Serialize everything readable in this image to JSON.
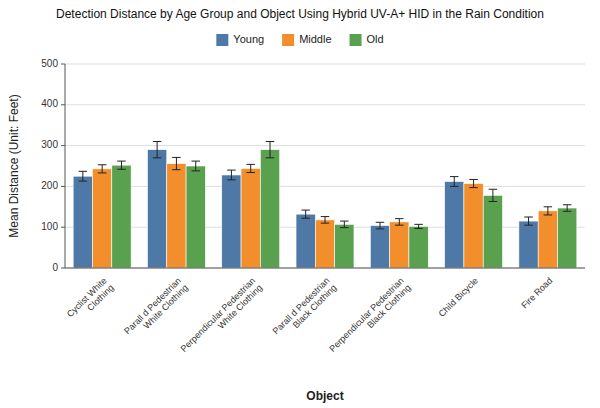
{
  "chart_data": {
    "type": "bar",
    "title": "Detection Distance by Age Group and Object Using Hybrid UV-A+ HID in the Rain Condition",
    "xlabel": "Object",
    "ylabel": "Mean Distance (Unit:  Feet)",
    "categories": [
      "Cyclist White\nClothing",
      "Parall d Pedestrian\nWhite Clothing",
      "Perpendicular Pedestrian\nWhite Clothing",
      "Parall d Pedestrian\nBlack Clothing",
      "Perpendicular Pedestrian\nBlack Clothing",
      "Child Bicycle",
      "Fire Road"
    ],
    "series": [
      {
        "name": "Young",
        "color": "#4e79a7",
        "values": [
          225,
          290,
          228,
          132,
          104,
          212,
          115
        ],
        "errors": [
          12,
          20,
          12,
          10,
          8,
          12,
          10
        ]
      },
      {
        "name": "Middle",
        "color": "#f28e2b",
        "values": [
          243,
          256,
          244,
          118,
          113,
          207,
          140
        ],
        "errors": [
          10,
          15,
          10,
          8,
          8,
          10,
          10
        ]
      },
      {
        "name": "Old",
        "color": "#59a14f",
        "values": [
          252,
          250,
          290,
          107,
          102,
          178,
          147
        ],
        "errors": [
          10,
          12,
          20,
          8,
          5,
          15,
          8
        ]
      }
    ],
    "ylim": [
      0,
      500
    ],
    "yticks": [
      0,
      100,
      200,
      300,
      400,
      500
    ],
    "grid": true,
    "legend": "top"
  }
}
